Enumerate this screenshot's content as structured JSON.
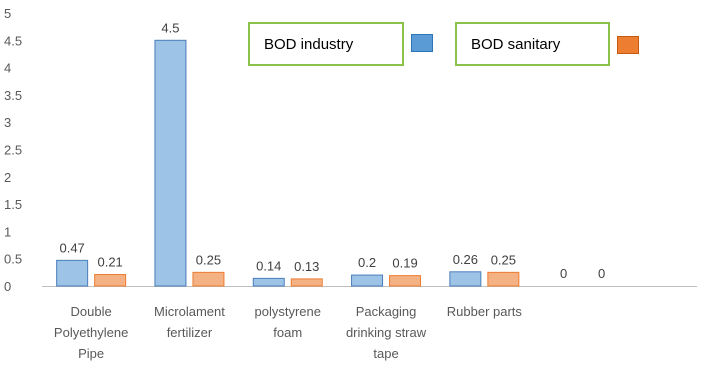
{
  "chart_data": {
    "type": "bar",
    "categories": [
      [
        "Double",
        "Polyethylene",
        "Pipe"
      ],
      [
        "Microlament",
        "fertilizer"
      ],
      [
        "polystyrene",
        "foam"
      ],
      [
        "Packaging",
        "drinking straw",
        "tape"
      ],
      [
        "Rubber parts"
      ],
      []
    ],
    "series": [
      {
        "name": "BOD industry",
        "values": [
          0.47,
          4.5,
          0.14,
          0.2,
          0.26,
          0
        ],
        "color": "#9dc3e6",
        "edge": "#4a7ebb",
        "swatch": "#5b9bd5"
      },
      {
        "name": "BOD sanitary",
        "values": [
          0.21,
          0.25,
          0.13,
          0.19,
          0.25,
          0
        ],
        "color": "#f4b183",
        "edge": "#ed7d31",
        "swatch": "#ed7d31"
      }
    ],
    "ylim": [
      0,
      5
    ],
    "yticks": [
      "0",
      "0.5",
      "1",
      "1.5",
      "2",
      "2.5",
      "3",
      "3.5",
      "4",
      "4.5",
      "5"
    ],
    "data_labels": [
      [
        "0.47",
        "4.5",
        "0.14",
        "0.2",
        "0.26",
        "0"
      ],
      [
        "0.21",
        "0.25",
        "0.13",
        "0.19",
        "0.25",
        "0"
      ]
    ],
    "grid": false,
    "legend_placement": "top-right",
    "title": "",
    "xlabel": "",
    "ylabel": ""
  },
  "legend": {
    "industry_label": "BOD industry",
    "sanitary_label": "BOD sanitary"
  }
}
